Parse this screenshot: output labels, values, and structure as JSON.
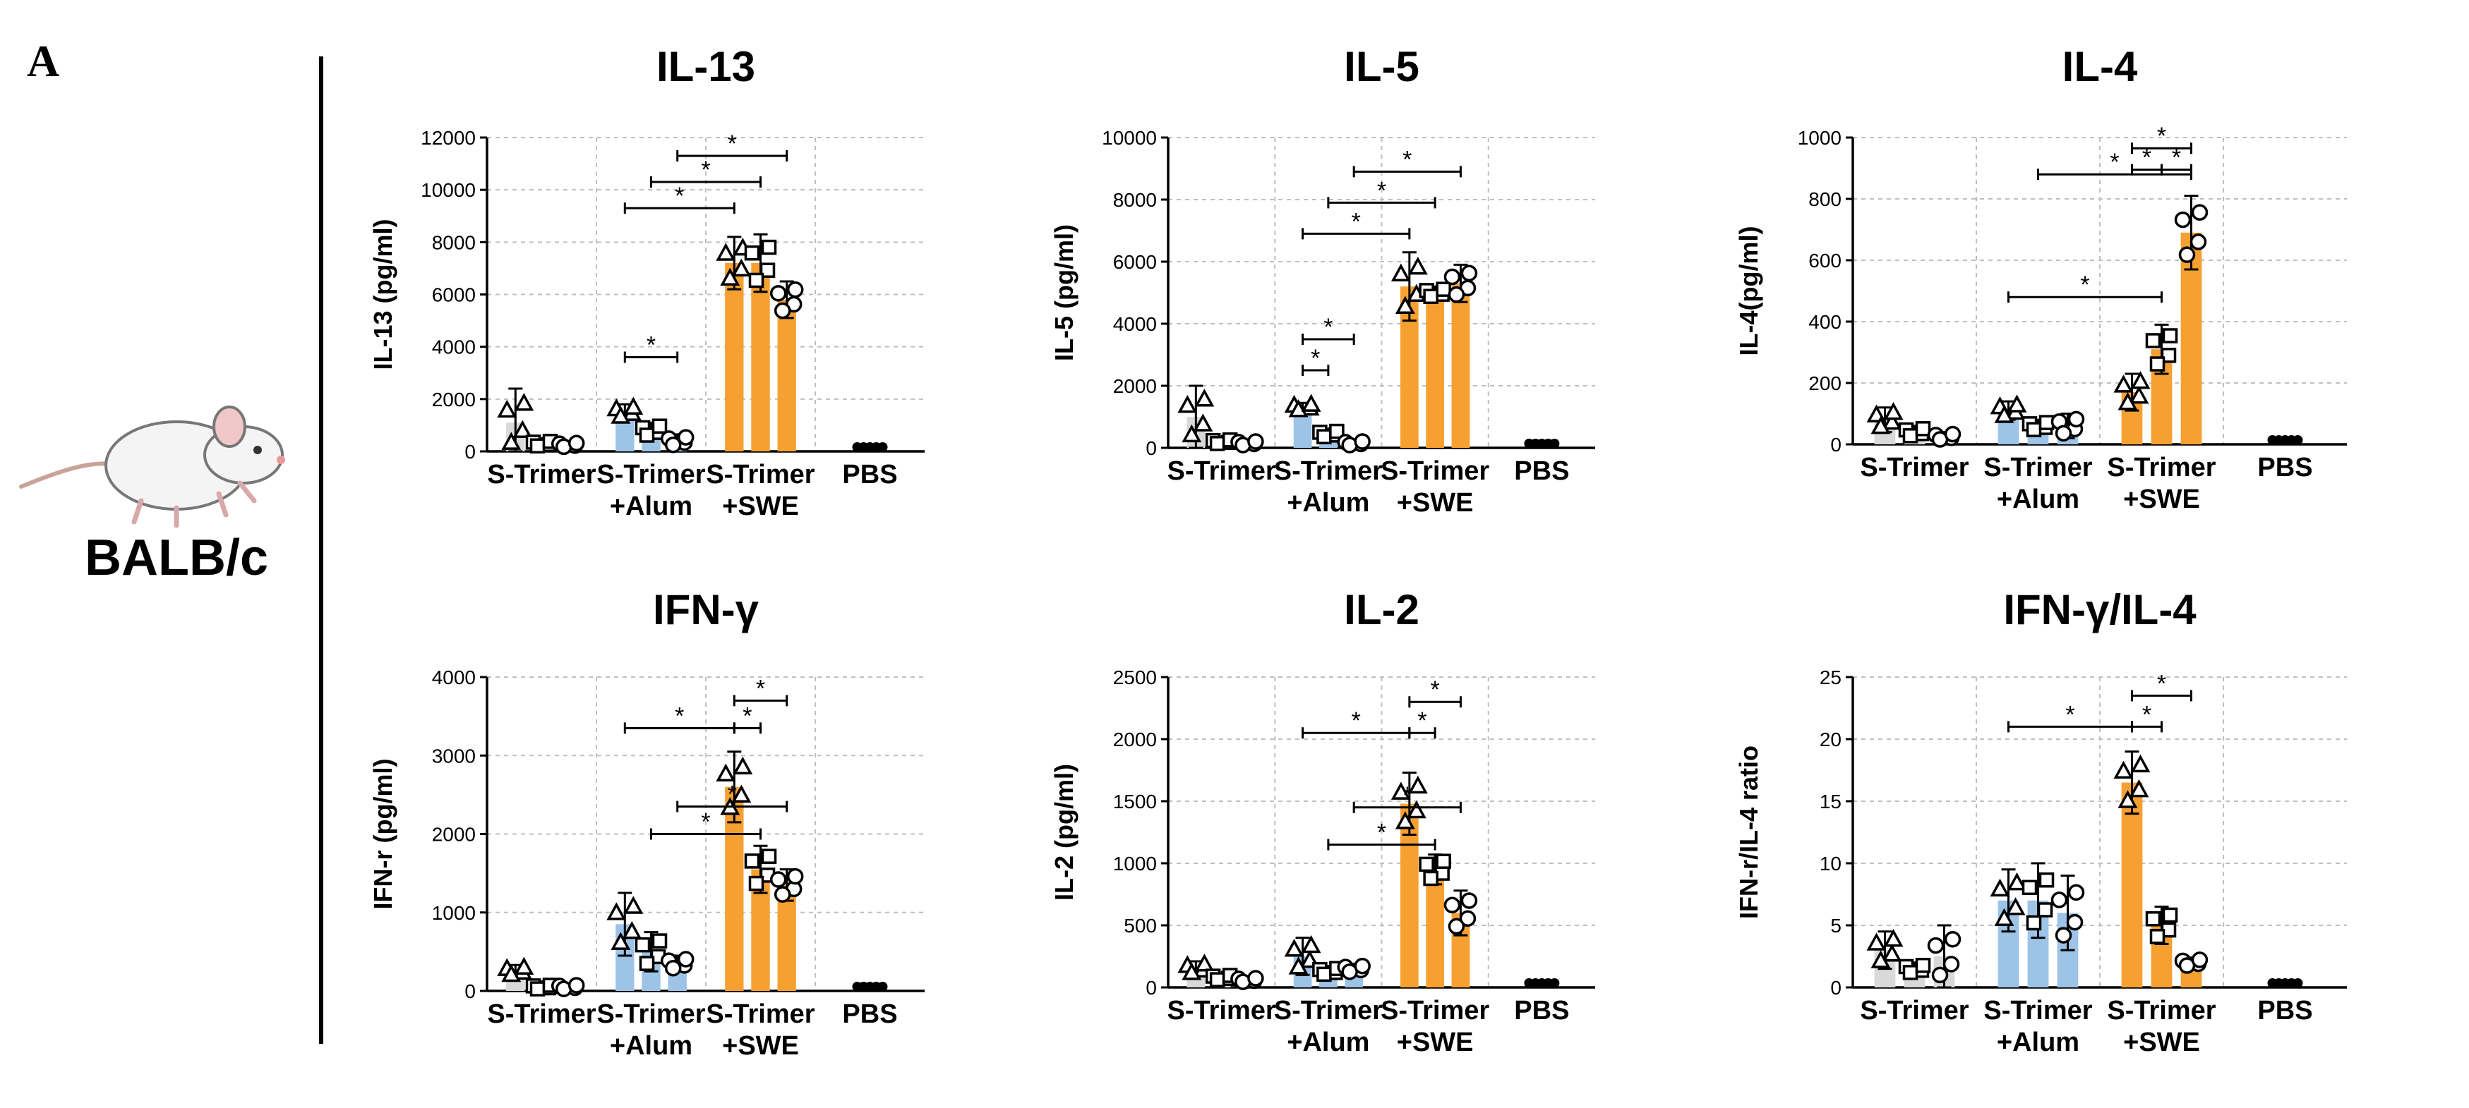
{
  "figure": {
    "panel_label": "A",
    "strain": "BALB/c",
    "mouse_icon": "mouse-icon",
    "colors": {
      "s_trimer": "#d9d9d9",
      "alum": "#9dc3e6",
      "swe": "#f6a032",
      "pbs": "#000000",
      "grid": "#bfbfbf"
    },
    "group_labels": {
      "g1": [
        "S-Trimer"
      ],
      "g2": [
        "S-Trimer",
        "+Alum"
      ],
      "g3": [
        "S-Trimer",
        "+SWE"
      ],
      "g4": [
        "PBS"
      ]
    }
  },
  "chart_data": [
    {
      "type": "bar",
      "title": "IL-13",
      "ylabel": "IL-13 (pg/ml)",
      "ylim": [
        0,
        12000
      ],
      "yticks": [
        0,
        2000,
        4000,
        6000,
        8000,
        10000,
        12000
      ],
      "groups": [
        "S-Trimer",
        "S-Trimer +Alum",
        "S-Trimer +SWE",
        "PBS"
      ],
      "bars": [
        {
          "group": 0,
          "values": [
            1100,
            300,
            250
          ],
          "err": [
            1300,
            150,
            120
          ]
        },
        {
          "group": 1,
          "values": [
            1500,
            800,
            400
          ],
          "err": [
            300,
            300,
            250
          ]
        },
        {
          "group": 2,
          "values": [
            7200,
            7200,
            5800
          ],
          "err": [
            1000,
            1100,
            700
          ]
        },
        {
          "group": 3,
          "values": [
            50
          ],
          "err": [
            0
          ]
        }
      ],
      "significance": [
        {
          "from": [
            1,
            0
          ],
          "to": [
            1,
            2
          ],
          "label": "*",
          "y": 3600
        },
        {
          "from": [
            1,
            0
          ],
          "to": [
            2,
            0
          ],
          "label": "*",
          "y": 9300
        },
        {
          "from": [
            1,
            1
          ],
          "to": [
            2,
            1
          ],
          "label": "*",
          "y": 10300
        },
        {
          "from": [
            1,
            2
          ],
          "to": [
            2,
            2
          ],
          "label": "*",
          "y": 11300
        }
      ]
    },
    {
      "type": "bar",
      "title": "IL-5",
      "ylabel": "IL-5 (pg/ml)",
      "ylim": [
        0,
        10000
      ],
      "yticks": [
        0,
        2000,
        4000,
        6000,
        8000,
        10000
      ],
      "groups": [
        "S-Trimer",
        "S-Trimer +Alum",
        "S-Trimer +SWE",
        "PBS"
      ],
      "bars": [
        {
          "group": 0,
          "values": [
            1000,
            200,
            150
          ],
          "err": [
            1000,
            100,
            100
          ]
        },
        {
          "group": 1,
          "values": [
            1300,
            450,
            150
          ],
          "err": [
            150,
            150,
            80
          ]
        },
        {
          "group": 2,
          "values": [
            5200,
            5000,
            5300
          ],
          "err": [
            1100,
            200,
            600
          ]
        },
        {
          "group": 3,
          "values": [
            40
          ],
          "err": [
            0
          ]
        }
      ],
      "significance": [
        {
          "from": [
            1,
            0
          ],
          "to": [
            1,
            1
          ],
          "label": "*",
          "y": 2500
        },
        {
          "from": [
            1,
            0
          ],
          "to": [
            1,
            2
          ],
          "label": "*",
          "y": 3500
        },
        {
          "from": [
            1,
            0
          ],
          "to": [
            2,
            0
          ],
          "label": "*",
          "y": 6900
        },
        {
          "from": [
            1,
            1
          ],
          "to": [
            2,
            1
          ],
          "label": "*",
          "y": 7900
        },
        {
          "from": [
            1,
            2
          ],
          "to": [
            2,
            2
          ],
          "label": "*",
          "y": 8900
        }
      ]
    },
    {
      "type": "bar",
      "title": "IL-4",
      "ylabel": "IL-4(pg/ml)",
      "ylim": [
        0,
        1000
      ],
      "yticks": [
        0,
        200,
        400,
        600,
        800,
        1000
      ],
      "groups": [
        "S-Trimer",
        "S-Trimer +Alum",
        "S-Trimer +SWE",
        "PBS"
      ],
      "bars": [
        {
          "group": 0,
          "values": [
            80,
            40,
            25
          ],
          "err": [
            40,
            20,
            15
          ]
        },
        {
          "group": 1,
          "values": [
            110,
            60,
            60
          ],
          "err": [
            30,
            20,
            40
          ]
        },
        {
          "group": 2,
          "values": [
            170,
            310,
            690
          ],
          "err": [
            60,
            80,
            120
          ]
        },
        {
          "group": 3,
          "values": [
            15
          ],
          "err": [
            0
          ]
        }
      ],
      "significance": [
        {
          "from": [
            1,
            0
          ],
          "to": [
            2,
            1
          ],
          "label": "*",
          "y": 480
        },
        {
          "from": [
            1,
            1
          ],
          "to": [
            2,
            2
          ],
          "label": "*",
          "y": 880
        },
        {
          "from": [
            2,
            0
          ],
          "to": [
            2,
            2
          ],
          "label": "*",
          "y": 965
        },
        {
          "from": [
            2,
            0
          ],
          "to": [
            2,
            1
          ],
          "label": "*",
          "y": 895
        },
        {
          "from": [
            2,
            1
          ],
          "to": [
            2,
            2
          ],
          "label": "*",
          "y": 895
        }
      ]
    },
    {
      "type": "bar",
      "title": "IFN-γ",
      "ylabel": "IFN-r (pg/ml)",
      "ylim": [
        0,
        4000
      ],
      "yticks": [
        0,
        1000,
        2000,
        3000,
        4000
      ],
      "groups": [
        "S-Trimer",
        "S-Trimer +Alum",
        "S-Trimer +SWE",
        "PBS"
      ],
      "bars": [
        {
          "group": 0,
          "values": [
            250,
            50,
            50
          ],
          "err": [
            80,
            20,
            20
          ]
        },
        {
          "group": 1,
          "values": [
            850,
            500,
            350
          ],
          "err": [
            400,
            250,
            100
          ]
        },
        {
          "group": 2,
          "values": [
            2600,
            1550,
            1350
          ],
          "err": [
            450,
            300,
            200
          ]
        },
        {
          "group": 3,
          "values": [
            20
          ],
          "err": [
            0
          ]
        }
      ],
      "significance": [
        {
          "from": [
            1,
            0
          ],
          "to": [
            2,
            0
          ],
          "label": "*",
          "y": 3350
        },
        {
          "from": [
            1,
            1
          ],
          "to": [
            2,
            1
          ],
          "label": "*",
          "y": 2000
        },
        {
          "from": [
            1,
            2
          ],
          "to": [
            2,
            2
          ],
          "label": "*",
          "y": 2350
        },
        {
          "from": [
            2,
            0
          ],
          "to": [
            2,
            1
          ],
          "label": "*",
          "y": 3350
        },
        {
          "from": [
            2,
            0
          ],
          "to": [
            2,
            2
          ],
          "label": "*",
          "y": 3700
        }
      ]
    },
    {
      "type": "bar",
      "title": "IL-2",
      "ylabel": "IL-2 (pg/ml)",
      "ylim": [
        0,
        2500
      ],
      "yticks": [
        0,
        500,
        1000,
        1500,
        2000,
        2500
      ],
      "groups": [
        "S-Trimer",
        "S-Trimer +Alum",
        "S-Trimer +SWE",
        "PBS"
      ],
      "bars": [
        {
          "group": 0,
          "values": [
            150,
            80,
            60
          ],
          "err": [
            60,
            30,
            20
          ]
        },
        {
          "group": 1,
          "values": [
            250,
            130,
            150
          ],
          "err": [
            150,
            40,
            40
          ]
        },
        {
          "group": 2,
          "values": [
            1480,
            950,
            600
          ],
          "err": [
            250,
            120,
            180
          ]
        },
        {
          "group": 3,
          "values": [
            30
          ],
          "err": [
            0
          ]
        }
      ],
      "significance": [
        {
          "from": [
            1,
            0
          ],
          "to": [
            2,
            0
          ],
          "label": "*",
          "y": 2050
        },
        {
          "from": [
            1,
            1
          ],
          "to": [
            2,
            1
          ],
          "label": "*",
          "y": 1150
        },
        {
          "from": [
            1,
            2
          ],
          "to": [
            2,
            2
          ],
          "label": "*",
          "y": 1450
        },
        {
          "from": [
            2,
            0
          ],
          "to": [
            2,
            1
          ],
          "label": "*",
          "y": 2050
        },
        {
          "from": [
            2,
            0
          ],
          "to": [
            2,
            2
          ],
          "label": "*",
          "y": 2300
        }
      ]
    },
    {
      "type": "bar",
      "title": "IFN-γ/IL-4",
      "ylabel": "IFN-r/IL-4 ratio",
      "ylim": [
        0,
        25
      ],
      "yticks": [
        0,
        5,
        10,
        15,
        20,
        25
      ],
      "groups": [
        "S-Trimer",
        "S-Trimer +Alum",
        "S-Trimer +SWE",
        "PBS"
      ],
      "bars": [
        {
          "group": 0,
          "values": [
            3,
            1.5,
            2.5
          ],
          "err": [
            1.5,
            0.5,
            2.5
          ]
        },
        {
          "group": 1,
          "values": [
            7,
            7,
            6
          ],
          "err": [
            2.5,
            3,
            3
          ]
        },
        {
          "group": 2,
          "values": [
            16.5,
            5,
            2
          ],
          "err": [
            2.5,
            1.5,
            0.4
          ]
        },
        {
          "group": 3,
          "values": [
            0.5
          ],
          "err": [
            0
          ]
        }
      ],
      "significance": [
        {
          "from": [
            1,
            0
          ],
          "to": [
            2,
            0
          ],
          "label": "*",
          "y": 21
        },
        {
          "from": [
            2,
            0
          ],
          "to": [
            2,
            1
          ],
          "label": "*",
          "y": 21
        },
        {
          "from": [
            2,
            0
          ],
          "to": [
            2,
            2
          ],
          "label": "*",
          "y": 23.5
        }
      ]
    }
  ]
}
